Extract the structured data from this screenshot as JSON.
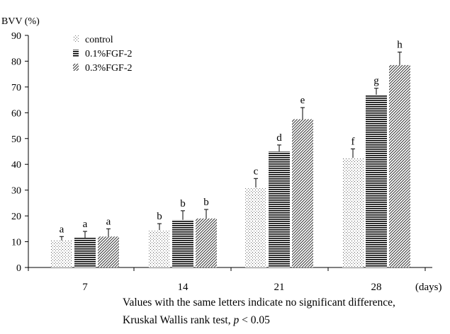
{
  "chart_data": {
    "type": "bar",
    "y_unit_label": "BVV (%)",
    "x_unit_label": "(days)",
    "categories": [
      "7",
      "14",
      "21",
      "28"
    ],
    "ylim": [
      0,
      90
    ],
    "yticks": [
      0,
      10,
      20,
      30,
      40,
      50,
      60,
      70,
      80,
      90
    ],
    "grid": false,
    "legend_position": "top-left",
    "series": [
      {
        "name": "control",
        "pattern": "dots",
        "values": [
          10.5,
          14.5,
          31,
          42.5
        ],
        "errors": [
          1.5,
          2.5,
          3.5,
          3.5
        ],
        "letters": [
          "a",
          "b",
          "c",
          "f"
        ]
      },
      {
        "name": "0.1%FGF-2",
        "pattern": "horizontal",
        "values": [
          11.5,
          18.5,
          45,
          67
        ],
        "errors": [
          2.5,
          3.5,
          2.5,
          2.5
        ],
        "letters": [
          "a",
          "b",
          "d",
          "g"
        ]
      },
      {
        "name": "0.3%FGF-2",
        "pattern": "diagonal",
        "values": [
          12,
          19,
          57.5,
          78.5
        ],
        "errors": [
          3,
          3.5,
          4.5,
          5
        ],
        "letters": [
          "a",
          "b",
          "e",
          "h"
        ]
      }
    ]
  },
  "footnote": {
    "line1": "Values with the same letters indicate no significant difference,",
    "line2_prefix": "Kruskal Wallis rank test, ",
    "line2_p": "p",
    "line2_suffix": " < 0.05"
  }
}
